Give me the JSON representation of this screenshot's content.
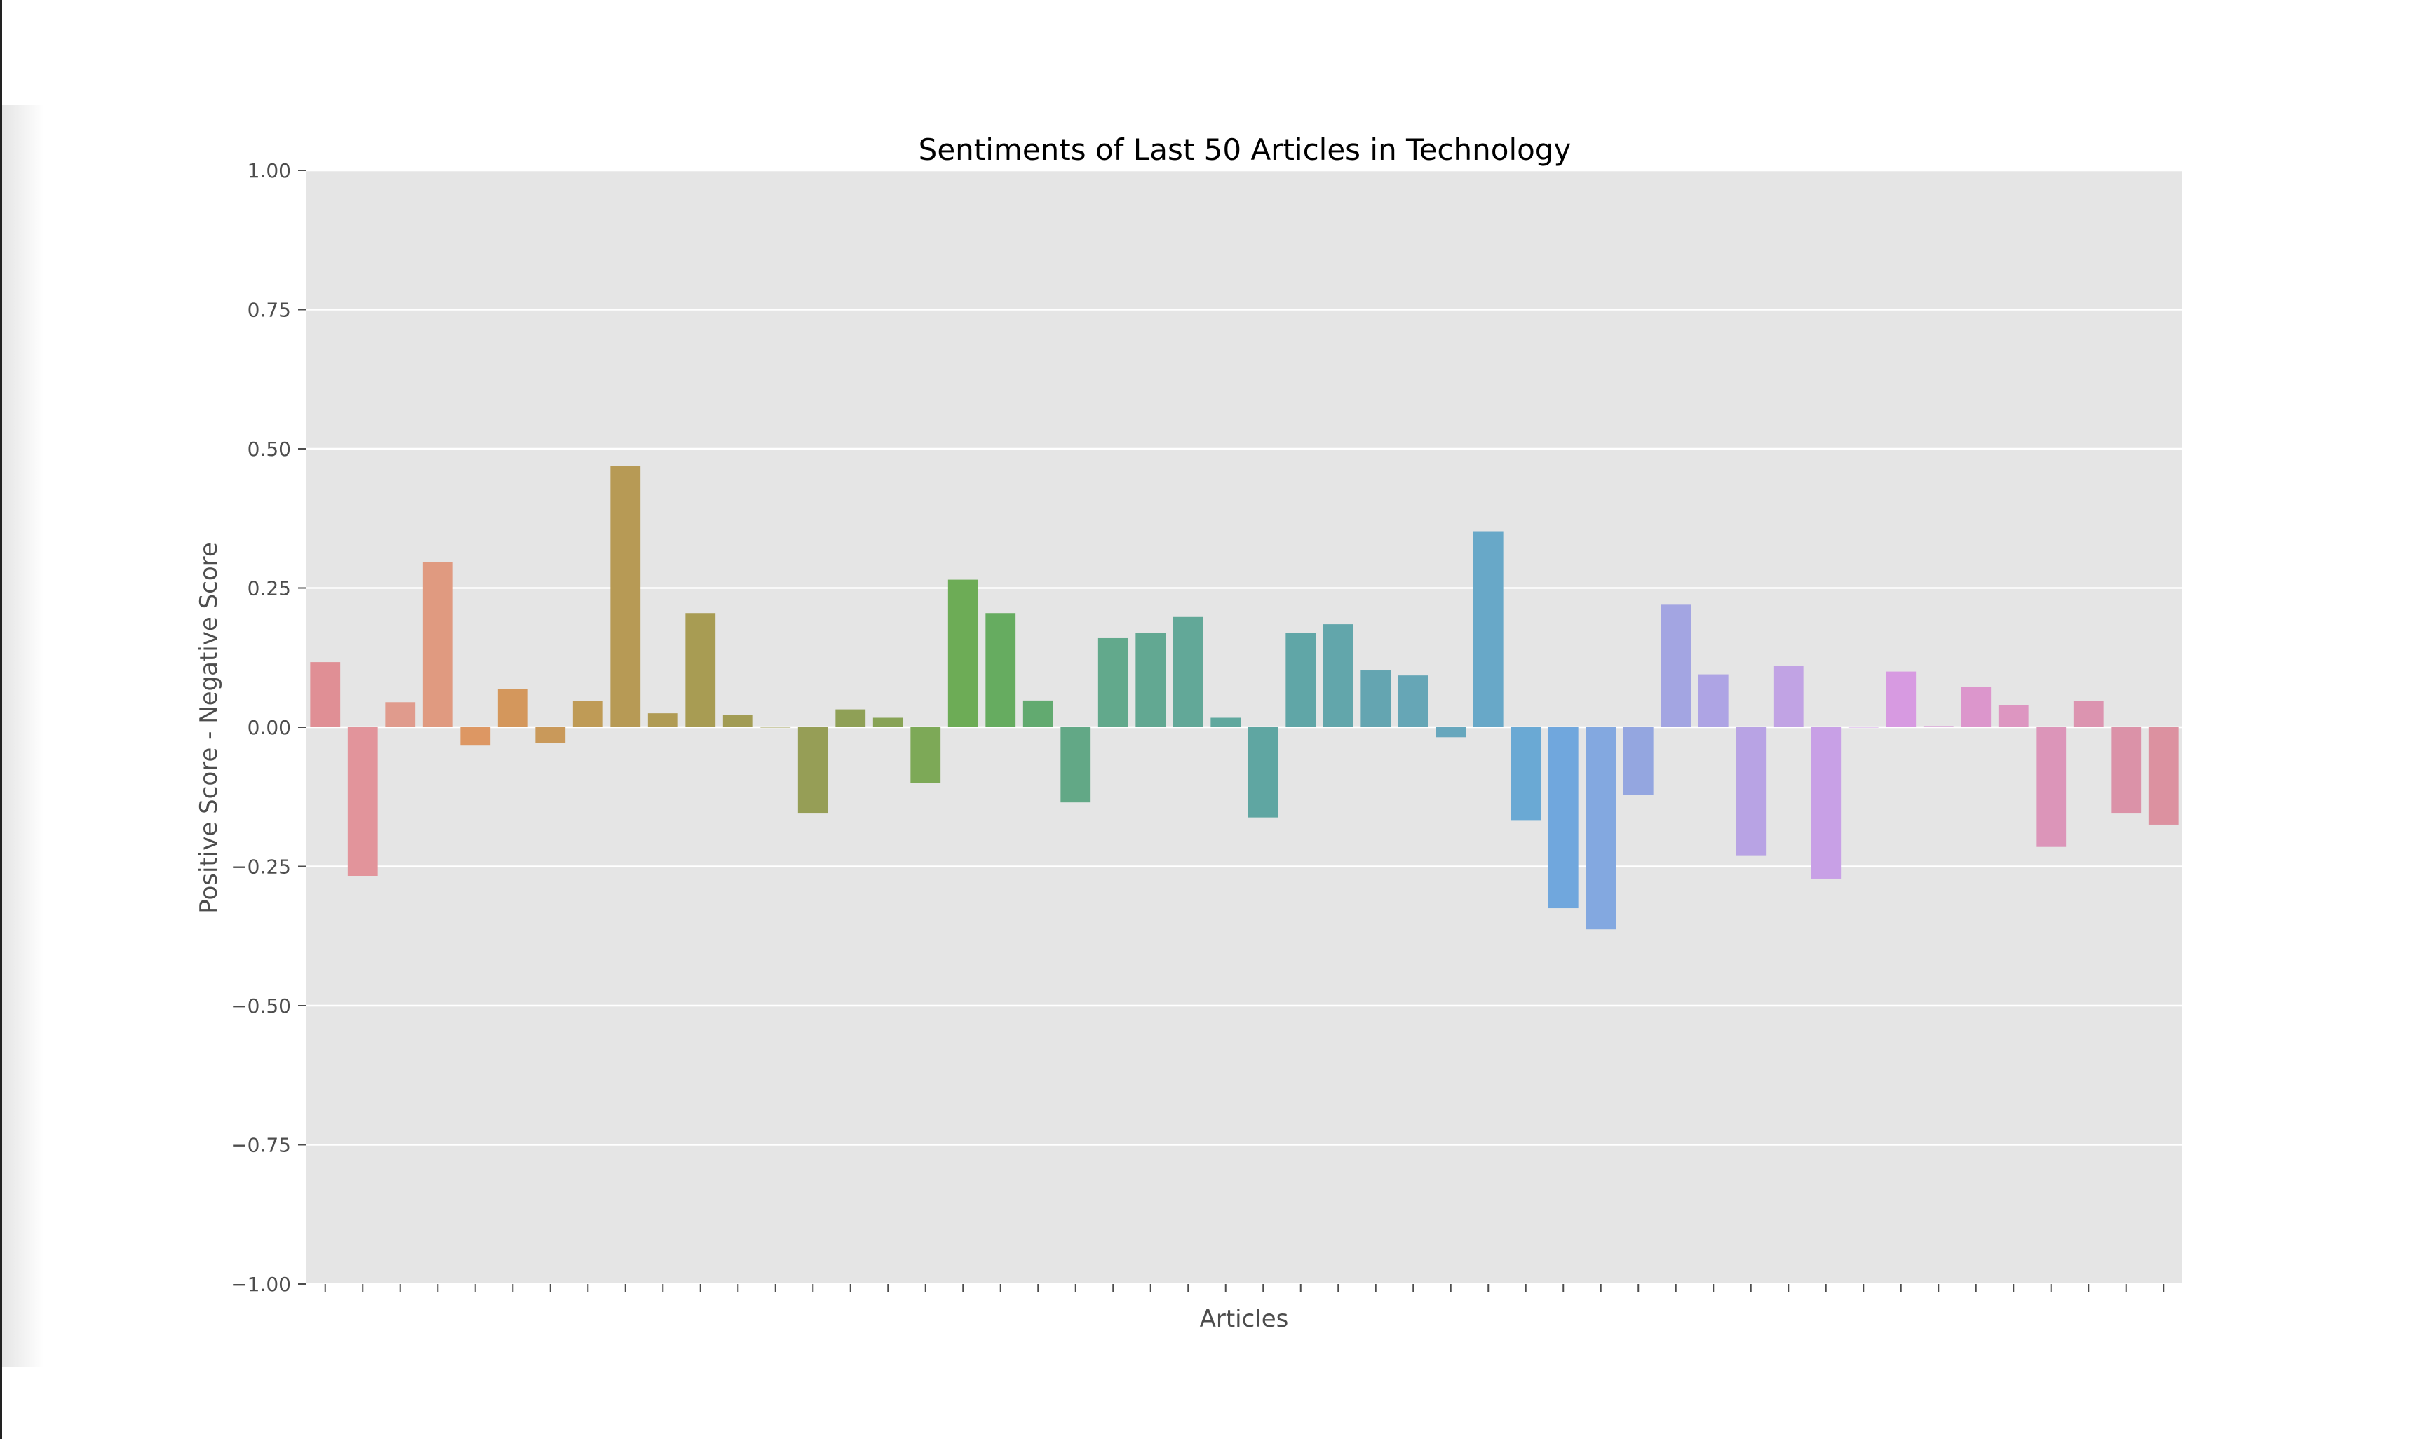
{
  "chart_data": {
    "type": "bar",
    "title": "Sentiments of Last 50 Articles in Technology",
    "xlabel": "Articles",
    "ylabel": "Positive Score - Negative Score",
    "ylim": [
      -1.0,
      1.0
    ],
    "yticks": [
      "−1.00",
      "−0.75",
      "−0.50",
      "−0.25",
      "0.00",
      "0.25",
      "0.50",
      "0.75",
      "1.00"
    ],
    "ytick_values": [
      -1.0,
      -0.75,
      -0.5,
      -0.25,
      0.0,
      0.25,
      0.5,
      0.75,
      1.0
    ],
    "grid": true,
    "x_tick_labels": "none",
    "background_color": "#e5e5e5",
    "values": [
      0.117,
      -0.267,
      0.045,
      0.297,
      -0.033,
      0.068,
      -0.028,
      0.047,
      0.469,
      0.025,
      0.205,
      0.022,
      0.0,
      -0.155,
      0.032,
      0.017,
      -0.1,
      0.265,
      0.205,
      0.048,
      -0.135,
      0.16,
      0.17,
      0.198,
      0.017,
      -0.162,
      0.17,
      0.185,
      0.102,
      0.093,
      -0.018,
      0.352,
      -0.168,
      -0.325,
      -0.363,
      -0.122,
      0.22,
      0.095,
      -0.23,
      0.11,
      -0.272,
      0.0,
      0.1,
      0.002,
      0.073,
      0.04,
      -0.215,
      0.047,
      -0.155,
      -0.175
    ],
    "colors": [
      "#e08f95",
      "#e2949b",
      "#e09b8d",
      "#e09a80",
      "#dd9763",
      "#d4975c",
      "#c9995a",
      "#bf9b56",
      "#b79a55",
      "#b09b54",
      "#a89c53",
      "#a29c54",
      "#9c9d55",
      "#969e56",
      "#8fa056",
      "#88a356",
      "#7da957",
      "#6dac56",
      "#66ac60",
      "#62aa70",
      "#62a886",
      "#62a98c",
      "#62a892",
      "#62a898",
      "#60a89e",
      "#5fa6a2",
      "#60a6a7",
      "#62a6ab",
      "#64a5b1",
      "#66a6b6",
      "#67a7bd",
      "#68a8c8",
      "#6aa9d4",
      "#70a7dd",
      "#83a8e0",
      "#94a6e0",
      "#a3a5e2",
      "#aea4e4",
      "#b8a3e4",
      "#c1a3e4",
      "#c8a0e6",
      "#cf9de4",
      "#d79ae1",
      "#da97d6",
      "#dc96cc",
      "#dd96c1",
      "#dc95b9",
      "#dc94b0",
      "#db92a8",
      "#dc91a0"
    ]
  }
}
